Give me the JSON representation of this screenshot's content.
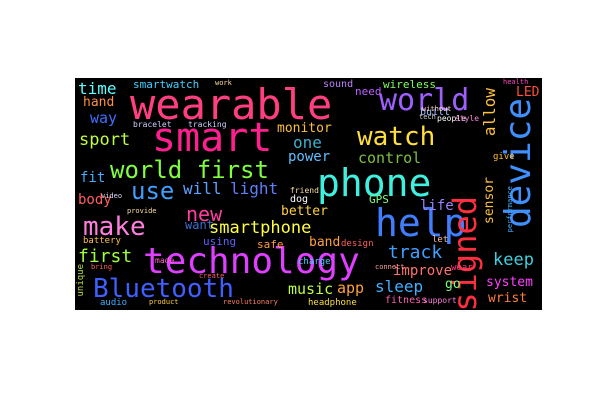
{
  "words": {
    "wearable": "wearable",
    "smart": "smart",
    "phone": "phone",
    "help": "help",
    "technology": "technology",
    "device": "device",
    "designed": "designed",
    "bluetooth": "Bluetooth",
    "world_top": "world",
    "world_first": "world first",
    "watch": "watch",
    "make": "make",
    "use": "use",
    "new": "new",
    "time": "time",
    "smartwatch": "smartwatch",
    "way": "way",
    "hand": "hand",
    "sport": "sport",
    "fit": "fit",
    "body": "body",
    "first": "first",
    "will": "will",
    "light": "light",
    "one": "one",
    "power": "power",
    "monitor": "monitor",
    "control": "control",
    "smartphone": "smartphone",
    "track": "track",
    "keep": "keep",
    "allow": "allow",
    "sensor": "sensor",
    "life": "life",
    "improve": "improve",
    "system": "system",
    "wrist": "wrist",
    "sleep": "sleep",
    "app": "app",
    "music": "music",
    "fitness": "fitness",
    "go": "go",
    "led": "LED",
    "wireless": "wireless",
    "sound": "sound",
    "need": "need",
    "built": "built",
    "bracelet": "bracelet",
    "tracking": "tracking",
    "better": "better",
    "dog": "dog",
    "want": "want",
    "band": "band",
    "design": "design",
    "gps": "GPS",
    "safe": "safe",
    "using": "using",
    "battery": "battery",
    "unique": "unique",
    "audio": "audio",
    "product": "product",
    "headphone": "headphone",
    "charge": "charge",
    "create": "create",
    "video": "video",
    "provide": "provide",
    "friend": "friend",
    "people": "people",
    "support": "support",
    "health": "health",
    "performance": "performance",
    "give": "give",
    "style": "style",
    "without": "without",
    "connect": "connect",
    "let": "let",
    "wear": "wear",
    "revolutionary": "revolutionary",
    "made": "made",
    "bring": "bring",
    "work": "work",
    "tech": "tech"
  }
}
